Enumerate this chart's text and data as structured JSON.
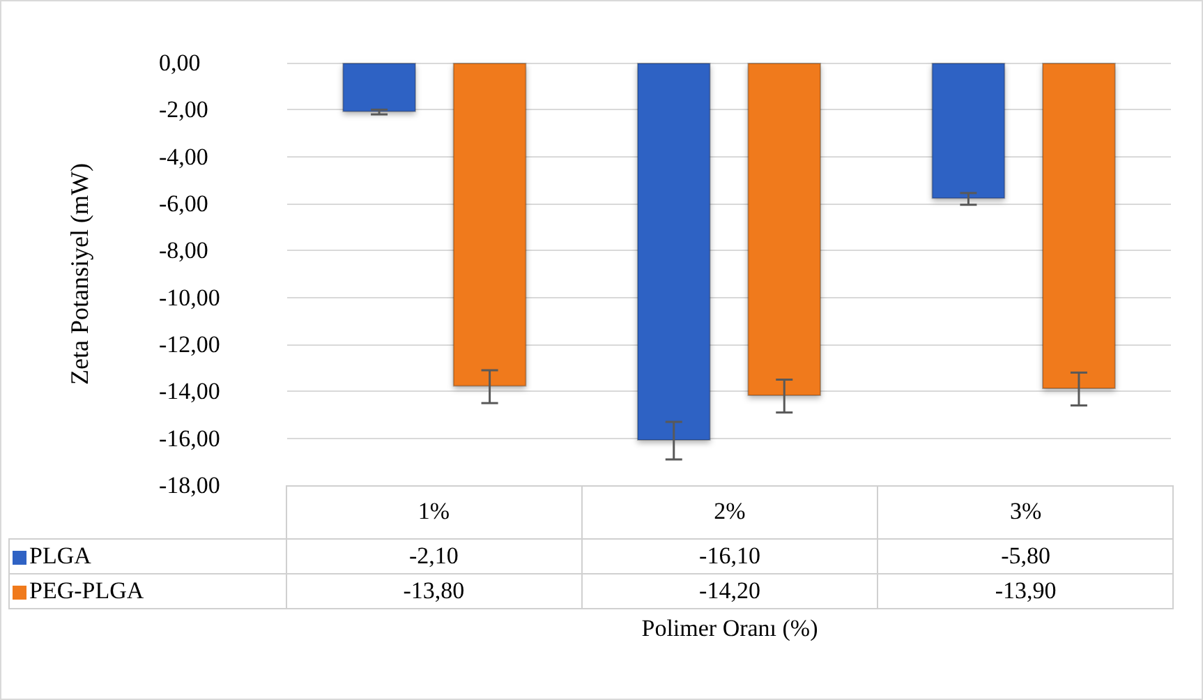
{
  "chart_data": {
    "type": "bar",
    "ylabel": "Zeta Potansiyel (mW)",
    "xlabel": "Polimer Oranı (%)",
    "categories": [
      "1%",
      "2%",
      "3%"
    ],
    "series": [
      {
        "name": "PLGA",
        "color": "#2f62c4",
        "values": [
          -2.1,
          -16.1,
          -5.8
        ],
        "errors": [
          0.1,
          0.8,
          0.25
        ],
        "value_labels": [
          "-2,10",
          "-16,10",
          "-5,80"
        ]
      },
      {
        "name": "PEG-PLGA",
        "color": "#f07a1c",
        "values": [
          -13.8,
          -14.2,
          -13.9
        ],
        "errors": [
          0.7,
          0.7,
          0.7
        ],
        "value_labels": [
          "-13,80",
          "-14,20",
          "-13,90"
        ]
      }
    ],
    "ylim": [
      -18,
      0
    ],
    "yticks": [
      {
        "value": 0,
        "label": "0,00"
      },
      {
        "value": -2,
        "label": "-2,00"
      },
      {
        "value": -4,
        "label": "-4,00"
      },
      {
        "value": -6,
        "label": "-6,00"
      },
      {
        "value": -8,
        "label": "-8,00"
      },
      {
        "value": -10,
        "label": "-10,00"
      },
      {
        "value": -12,
        "label": "-12,00"
      },
      {
        "value": -14,
        "label": "-14,00"
      },
      {
        "value": -16,
        "label": "-16,00"
      },
      {
        "value": -18,
        "label": "-18,00"
      }
    ],
    "grid": "y",
    "legend": "bottom"
  }
}
